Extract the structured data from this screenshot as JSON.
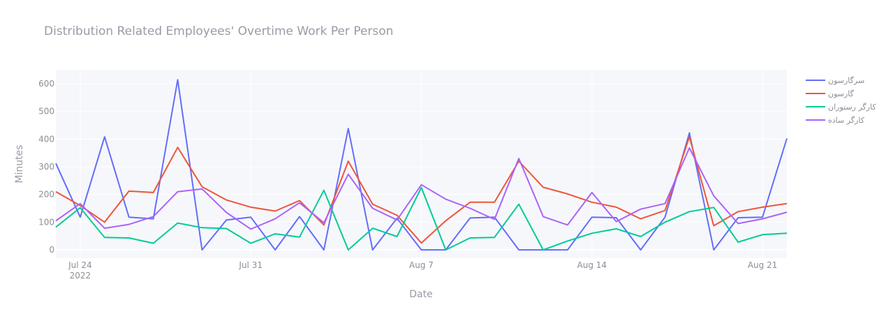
{
  "chart_data": {
    "type": "line",
    "title": "Distribution Related Employees' Overtime Work Per Person",
    "xlabel": "Date",
    "ylabel": "Minutes",
    "x_start": "2022-07-23",
    "x_end": "2022-08-22",
    "x": [
      "2022-07-23",
      "2022-07-24",
      "2022-07-25",
      "2022-07-26",
      "2022-07-27",
      "2022-07-28",
      "2022-07-29",
      "2022-07-30",
      "2022-07-31",
      "2022-08-01",
      "2022-08-02",
      "2022-08-03",
      "2022-08-04",
      "2022-08-05",
      "2022-08-06",
      "2022-08-07",
      "2022-08-08",
      "2022-08-09",
      "2022-08-10",
      "2022-08-11",
      "2022-08-12",
      "2022-08-13",
      "2022-08-14",
      "2022-08-15",
      "2022-08-16",
      "2022-08-17",
      "2022-08-18",
      "2022-08-19",
      "2022-08-20",
      "2022-08-21",
      "2022-08-22"
    ],
    "ylim": [
      -30,
      650
    ],
    "yticks": [
      0,
      100,
      200,
      300,
      400,
      500,
      600
    ],
    "xticks": [
      {
        "date": "2022-07-24",
        "label": "Jul 24",
        "sublabel": "2022"
      },
      {
        "date": "2022-07-31",
        "label": "Jul 31",
        "sublabel": ""
      },
      {
        "date": "2022-08-07",
        "label": "Aug 7",
        "sublabel": ""
      },
      {
        "date": "2022-08-14",
        "label": "Aug 14",
        "sublabel": ""
      },
      {
        "date": "2022-08-21",
        "label": "Aug 21",
        "sublabel": ""
      }
    ],
    "grid": true,
    "legend_position": "top-right",
    "series": [
      {
        "name": "سرگارسون",
        "color": "#636efa",
        "values": [
          312,
          118,
          408,
          118,
          112,
          614,
          0,
          108,
          118,
          0,
          120,
          0,
          438,
          0,
          114,
          0,
          0,
          115,
          118,
          0,
          0,
          0,
          118,
          116,
          0,
          118,
          422,
          0,
          116,
          118,
          402
        ]
      },
      {
        "name": "گارسون",
        "color": "#ef553b",
        "values": [
          210,
          160,
          100,
          212,
          207,
          370,
          228,
          180,
          154,
          140,
          178,
          90,
          320,
          165,
          125,
          25,
          105,
          172,
          172,
          320,
          226,
          202,
          172,
          154,
          112,
          142,
          408,
          87,
          138,
          154,
          167
        ]
      },
      {
        "name": "کارگر رستوران",
        "color": "#00cc96",
        "values": [
          82,
          152,
          45,
          43,
          24,
          97,
          80,
          77,
          24,
          58,
          46,
          215,
          0,
          78,
          48,
          225,
          0,
          43,
          45,
          165,
          0,
          32,
          60,
          76,
          48,
          100,
          138,
          153,
          28,
          55,
          60
        ]
      },
      {
        "name": "کارگر ساده",
        "color": "#ab63fa",
        "values": [
          105,
          167,
          78,
          92,
          120,
          210,
          220,
          135,
          75,
          112,
          170,
          98,
          273,
          150,
          108,
          235,
          183,
          150,
          110,
          330,
          120,
          90,
          207,
          102,
          147,
          167,
          368,
          195,
          95,
          112,
          136
        ]
      }
    ]
  }
}
